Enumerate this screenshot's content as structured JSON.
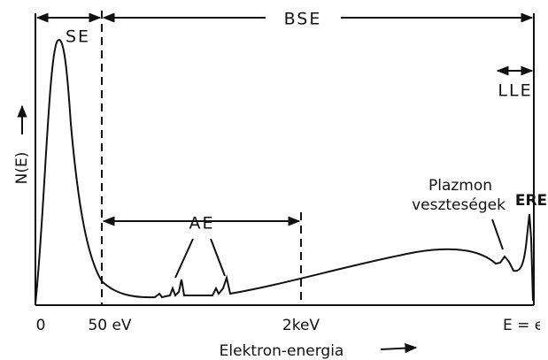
{
  "labels": {
    "se": "SE",
    "bse": "BSE",
    "lle": "LLE",
    "ae": "AE",
    "plasmon_1": "Plazmon",
    "plasmon_2": "veszteségek",
    "ere": "ERE",
    "y_axis": "N(E)",
    "x_axis": "Elektron-energia"
  },
  "x_ticks": [
    "0",
    "50 eV",
    "2keV",
    "E = el"
  ]
}
